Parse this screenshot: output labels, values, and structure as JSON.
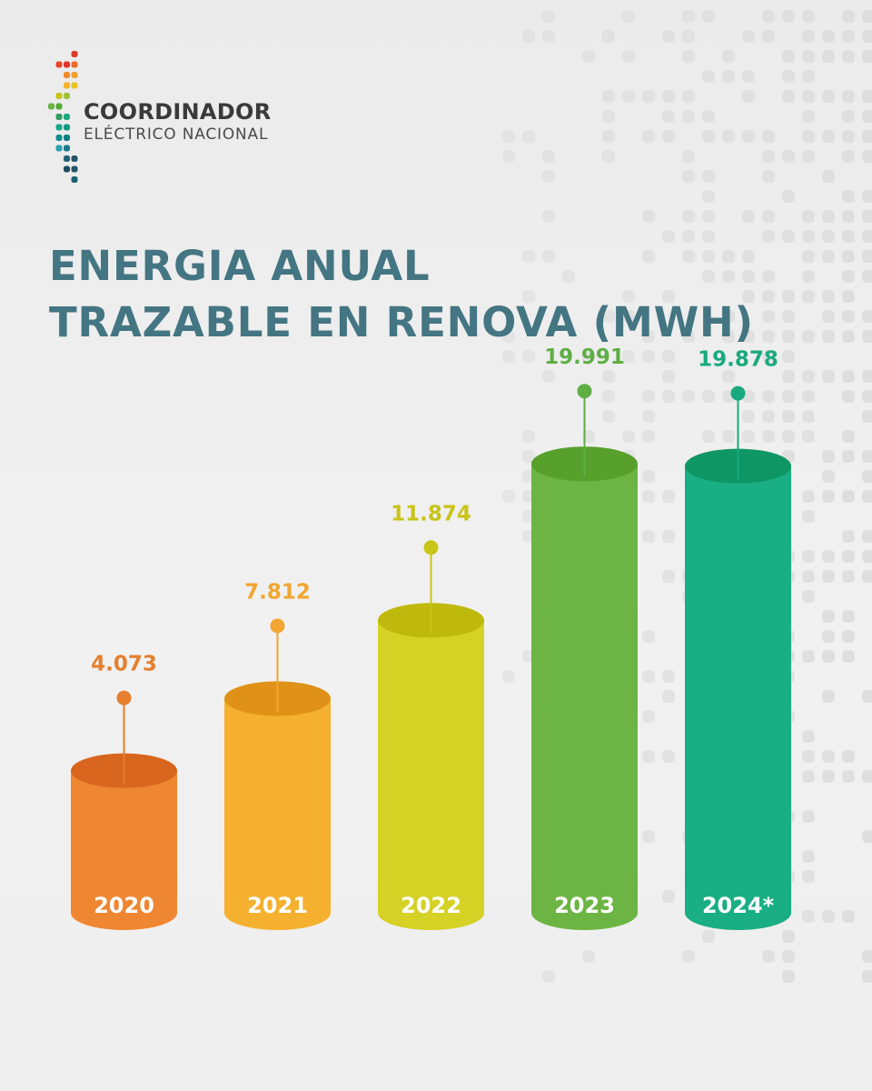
{
  "brand": {
    "name": "COORDINADOR",
    "subtitle": "ELÉCTRICO NACIONAL"
  },
  "title": {
    "line1": "ENERGIA ANUAL",
    "line2": "TRAZABLE EN RENOVA (MWH)"
  },
  "colors": {
    "title": "#447582",
    "background": "#eeeeee",
    "year_label": "#ffffff"
  },
  "chart_data": {
    "type": "bar",
    "title": "ENERGIA ANUAL TRAZABLE EN RENOVA (MWH)",
    "xlabel": "",
    "ylabel": "",
    "categories": [
      "2020",
      "2021",
      "2022",
      "2023",
      "2024*"
    ],
    "values": [
      4073,
      7812,
      11874,
      19991,
      19878
    ],
    "value_labels": [
      "4.073",
      "7.812",
      "11.874",
      "19.991",
      "19.878"
    ],
    "ylim": [
      0,
      20000
    ],
    "grid": false,
    "legend": "none",
    "series_colors": [
      {
        "body": "#ef8631",
        "top": "#d8661e",
        "label": "#e57f2e"
      },
      {
        "body": "#f5b030",
        "top": "#df9217",
        "label": "#f0a630"
      },
      {
        "body": "#d5d125",
        "top": "#bfb90d",
        "label": "#c8c418"
      },
      {
        "body": "#6cb443",
        "top": "#57a02c",
        "label": "#5fae45"
      },
      {
        "body": "#19ae84",
        "top": "#0f9665",
        "label": "#1aa97e"
      }
    ]
  }
}
